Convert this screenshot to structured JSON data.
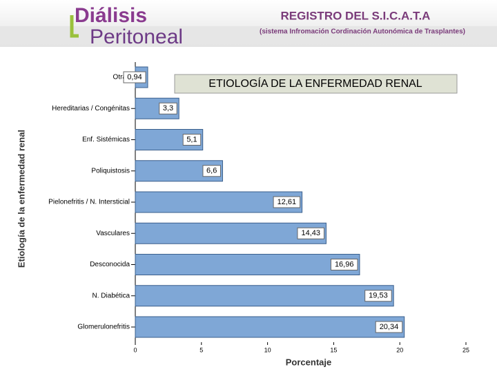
{
  "header": {
    "logo_line1": "Diálisis",
    "logo_line2": "Peritoneal",
    "title": "REGISTRO DEL S.I.C.A.T.A",
    "subtitle": "(sistema Infromación Cordinación Autonómica de Trasplantes)"
  },
  "chart_data": {
    "type": "bar",
    "orientation": "horizontal",
    "title": "ETIOLOGÍA DE LA ENFERMEDAD RENAL",
    "x_label": "Porcentaje",
    "y_label": "Etiología de la enfermedad renal",
    "categories": [
      "Otras",
      "Hereditarias / Congénitas",
      "Enf. Sistémicas",
      "Poliquistosis",
      "Pielonefritis / N. Intersticial",
      "Vasculares",
      "Desconocida",
      "N. Diabética",
      "Glomerulonefritis"
    ],
    "values": [
      0.94,
      3.3,
      5.1,
      6.6,
      12.61,
      14.43,
      16.96,
      19.53,
      20.34
    ],
    "value_labels": [
      "0,94",
      "3,3",
      "5,1",
      "6,6",
      "12,61",
      "14,43",
      "16,96",
      "19,53",
      "20,34"
    ],
    "color": "#7fa7d6",
    "xlim": [
      0,
      25
    ],
    "xticks": [
      0,
      5,
      10,
      15,
      20,
      25
    ]
  }
}
